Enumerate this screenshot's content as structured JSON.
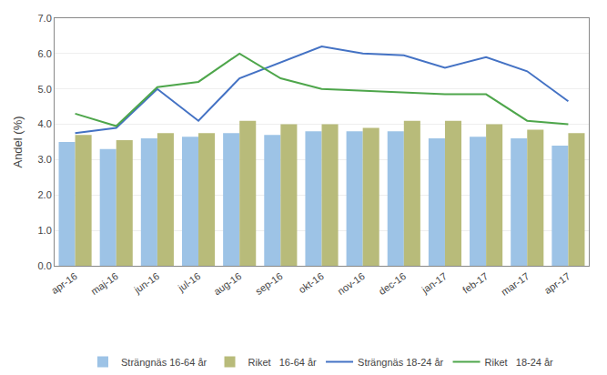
{
  "chart_data": {
    "type": "bar",
    "categories": [
      "apr-16",
      "maj-16",
      "jun-16",
      "jul-16",
      "aug-16",
      "sep-16",
      "okt-16",
      "nov-16",
      "dec-16",
      "jan-17",
      "feb-17",
      "mar-17",
      "apr-17"
    ],
    "series": [
      {
        "name": "Strängnäs 16-64 år",
        "type": "bar",
        "color": "#9DC3E6",
        "values": [
          3.5,
          3.3,
          3.6,
          3.65,
          3.75,
          3.7,
          3.8,
          3.8,
          3.8,
          3.6,
          3.65,
          3.6,
          3.4
        ]
      },
      {
        "name": "Riket   16-64 år",
        "type": "bar",
        "color": "#B8BB7A",
        "values": [
          3.7,
          3.55,
          3.75,
          3.75,
          4.1,
          4.0,
          4.0,
          3.9,
          4.1,
          4.1,
          4.0,
          3.85,
          3.75
        ]
      },
      {
        "name": "Strängnäs 18-24 år",
        "type": "line",
        "color": "#4472C4",
        "values": [
          3.75,
          3.9,
          5.0,
          4.1,
          5.3,
          5.75,
          6.2,
          6.0,
          5.95,
          5.6,
          5.9,
          5.5,
          4.65
        ]
      },
      {
        "name": "Riket   18-24 år",
        "type": "line",
        "color": "#4EA64B",
        "values": [
          4.3,
          3.95,
          5.05,
          5.2,
          6.0,
          5.3,
          5.0,
          4.95,
          4.9,
          4.85,
          4.85,
          4.1,
          4.0
        ]
      }
    ],
    "ylabel": "Andel (%)",
    "ylim": [
      0.0,
      7.0
    ],
    "yticks": [
      {
        "value": 0.0,
        "label": "0.0"
      },
      {
        "value": 1.0,
        "label": "1.0"
      },
      {
        "value": 2.0,
        "label": "2.0"
      },
      {
        "value": 3.0,
        "label": "3.0"
      },
      {
        "value": 4.0,
        "label": "4.0"
      },
      {
        "value": 5.0,
        "label": "5.0"
      },
      {
        "value": 6.0,
        "label": "6.0"
      },
      {
        "value": 7.0,
        "label": "7.0"
      }
    ],
    "grid": true,
    "legend": "bottom"
  }
}
